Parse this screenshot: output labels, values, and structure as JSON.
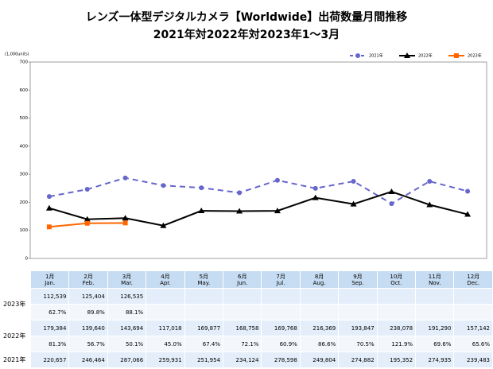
{
  "chart_data": {
    "type": "line",
    "title": "レンズ一体型デジタルカメラ【Worldwide】出荷数量月間推移",
    "subtitle": "2021年対2022年対2023年1～3月",
    "y_label": "(1,000units)",
    "ylim": [
      0,
      700
    ],
    "yticks": [
      0,
      100,
      200,
      300,
      400,
      500,
      600,
      700
    ],
    "legend": "top-right",
    "grid": false,
    "series": [
      {
        "name": "2021年",
        "color": "#6666cc",
        "dash": true,
        "marker": "circle",
        "values": [
          220.657,
          246.464,
          287.066,
          259.931,
          251.954,
          234.124,
          278.598,
          249.804,
          274.882,
          195.352,
          274.935,
          239.483
        ]
      },
      {
        "name": "2022年",
        "color": "#000000",
        "dash": false,
        "marker": "triangle",
        "values": [
          179.384,
          139.64,
          143.694,
          117.018,
          169.877,
          168.758,
          169.768,
          216.369,
          193.847,
          238.078,
          191.29,
          157.142
        ]
      },
      {
        "name": "2023年",
        "color": "#ff6600",
        "dash": false,
        "marker": "square",
        "values": [
          112.539,
          125.404,
          126.535,
          null,
          null,
          null,
          null,
          null,
          null,
          null,
          null,
          null
        ]
      }
    ]
  },
  "table": {
    "months": [
      {
        "ja": "1月",
        "en": "Jan."
      },
      {
        "ja": "2月",
        "en": "Feb."
      },
      {
        "ja": "3月",
        "en": "Mar."
      },
      {
        "ja": "4月",
        "en": "Apr."
      },
      {
        "ja": "5月",
        "en": "May."
      },
      {
        "ja": "6月",
        "en": "Jun."
      },
      {
        "ja": "7月",
        "en": "Jul."
      },
      {
        "ja": "8月",
        "en": "Aug."
      },
      {
        "ja": "9月",
        "en": "Sep."
      },
      {
        "ja": "10月",
        "en": "Oct."
      },
      {
        "ja": "11月",
        "en": "Nov."
      },
      {
        "ja": "12月",
        "en": "Dec."
      }
    ],
    "rows": [
      {
        "label": "2023年",
        "values": [
          "112,539",
          "125,404",
          "126,535"
        ],
        "ratios": [
          "62.7%",
          "89.8%",
          "88.1%"
        ]
      },
      {
        "label": "2022年",
        "values": [
          "179,384",
          "139,640",
          "143,694",
          "117,018",
          "169,877",
          "168,758",
          "169,768",
          "216,369",
          "193,847",
          "238,078",
          "191,290",
          "157,142"
        ],
        "ratios": [
          "81.3%",
          "56.7%",
          "50.1%",
          "45.0%",
          "67.4%",
          "72.1%",
          "60.9%",
          "86.6%",
          "70.5%",
          "121.9%",
          "69.6%",
          "65.6%"
        ]
      },
      {
        "label": "2021年",
        "values": [
          "220,657",
          "246,464",
          "287,066",
          "259,931",
          "251,954",
          "234,124",
          "278,598",
          "249,804",
          "274,882",
          "195,352",
          "274,935",
          "239,483"
        ]
      }
    ]
  }
}
